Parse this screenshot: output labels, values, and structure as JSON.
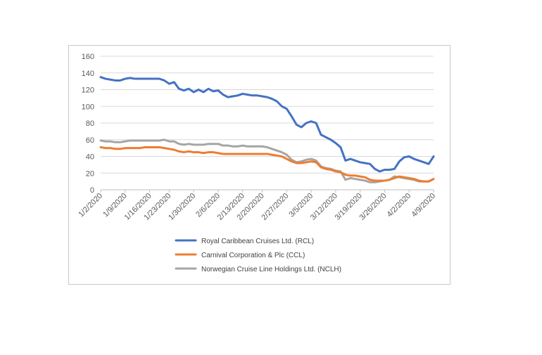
{
  "chart_data": {
    "type": "line",
    "title": "",
    "xlabel": "",
    "ylabel": "",
    "ylim": [
      0,
      160
    ],
    "y_ticks": [
      0,
      20,
      40,
      60,
      80,
      100,
      120,
      140,
      160
    ],
    "x_tick_labels": [
      "1/2/2020",
      "1/9/2020",
      "1/16/2020",
      "1/23/2020",
      "1/30/2020",
      "2/6/2020",
      "2/13/2020",
      "2/20/2020",
      "2/27/2020",
      "3/5/2020",
      "3/12/2020",
      "3/19/2020",
      "3/26/2020",
      "4/2/2020",
      "4/9/2020"
    ],
    "grid": "horizontal",
    "legend_position": "bottom",
    "x": [
      "1/2/2020",
      "1/3/2020",
      "1/6/2020",
      "1/7/2020",
      "1/8/2020",
      "1/9/2020",
      "1/10/2020",
      "1/13/2020",
      "1/14/2020",
      "1/15/2020",
      "1/16/2020",
      "1/17/2020",
      "1/21/2020",
      "1/22/2020",
      "1/23/2020",
      "1/24/2020",
      "1/27/2020",
      "1/28/2020",
      "1/29/2020",
      "1/30/2020",
      "1/31/2020",
      "2/3/2020",
      "2/4/2020",
      "2/5/2020",
      "2/6/2020",
      "2/7/2020",
      "2/10/2020",
      "2/11/2020",
      "2/12/2020",
      "2/13/2020",
      "2/14/2020",
      "2/18/2020",
      "2/19/2020",
      "2/20/2020",
      "2/21/2020",
      "2/24/2020",
      "2/25/2020",
      "2/26/2020",
      "2/27/2020",
      "2/28/2020",
      "3/2/2020",
      "3/3/2020",
      "3/4/2020",
      "3/5/2020",
      "3/6/2020",
      "3/9/2020",
      "3/10/2020",
      "3/11/2020",
      "3/12/2020",
      "3/13/2020",
      "3/16/2020",
      "3/17/2020",
      "3/18/2020",
      "3/19/2020",
      "3/20/2020",
      "3/23/2020",
      "3/24/2020",
      "3/25/2020",
      "3/26/2020",
      "3/27/2020",
      "3/30/2020",
      "3/31/2020",
      "4/1/2020",
      "4/2/2020",
      "4/3/2020",
      "4/6/2020",
      "4/7/2020",
      "4/8/2020",
      "4/9/2020"
    ],
    "series": [
      {
        "name": "Royal Caribbean Cruises Ltd. (RCL)",
        "color": "#4472c4",
        "values": [
          135,
          133,
          132,
          131,
          131,
          133,
          134,
          133,
          133,
          133,
          133,
          133,
          133,
          131,
          127,
          129,
          121,
          119,
          121,
          117,
          120,
          117,
          121,
          118,
          119,
          114,
          111,
          112,
          113,
          115,
          114,
          113,
          113,
          112,
          111,
          109,
          106,
          100,
          97,
          88,
          78,
          75,
          80,
          82,
          80,
          66,
          63,
          60,
          56,
          51,
          35,
          37,
          35,
          33,
          32,
          31,
          25,
          22,
          24,
          24,
          25,
          34,
          39,
          40,
          37,
          35,
          33,
          31,
          40
        ]
      },
      {
        "name": "Carnival Corporation & Plc (CCL)",
        "color": "#ed7d31",
        "values": [
          51,
          50,
          50,
          49,
          49,
          50,
          50,
          50,
          50,
          51,
          51,
          51,
          51,
          50,
          49,
          48,
          46,
          45,
          46,
          45,
          45,
          44,
          45,
          45,
          44,
          43,
          43,
          43,
          43,
          43,
          43,
          43,
          43,
          43,
          43,
          42,
          41,
          40,
          37,
          34,
          32,
          32,
          33,
          34,
          33,
          27,
          25,
          24,
          22,
          21,
          18,
          17,
          17,
          16,
          15,
          12,
          11,
          11,
          11,
          12,
          14,
          16,
          15,
          14,
          13,
          11,
          10,
          10,
          13
        ]
      },
      {
        "name": "Norwegian Cruise Line Holdings Ltd. (NCLH)",
        "color": "#a5a5a5",
        "values": [
          59,
          58,
          58,
          57,
          57,
          58,
          59,
          59,
          59,
          59,
          59,
          59,
          59,
          60,
          58,
          58,
          55,
          54,
          55,
          54,
          54,
          54,
          55,
          55,
          55,
          53,
          53,
          52,
          52,
          53,
          52,
          52,
          52,
          52,
          51,
          49,
          47,
          45,
          42,
          36,
          33,
          34,
          36,
          37,
          35,
          28,
          26,
          25,
          23,
          22,
          12,
          14,
          13,
          12,
          11,
          9,
          9,
          10,
          11,
          12,
          16,
          15,
          14,
          13,
          12,
          10,
          10,
          10,
          13
        ]
      }
    ]
  }
}
